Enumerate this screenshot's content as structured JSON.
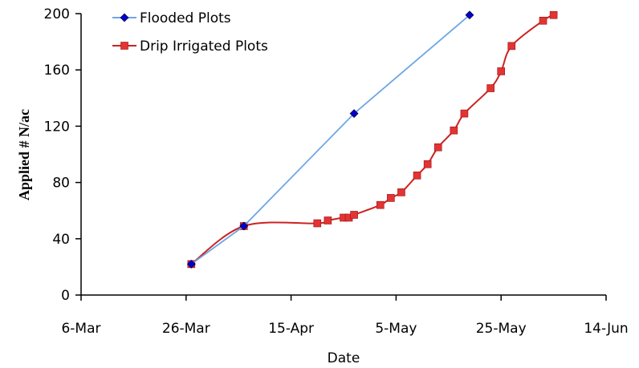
{
  "chart_data": {
    "type": "line",
    "xlabel": "Date",
    "ylabel": "Applied # N/ac",
    "ylim": [
      0,
      200
    ],
    "y_ticks": [
      0,
      40,
      80,
      120,
      160,
      200
    ],
    "x_ticks": [
      {
        "date": "2007-03-06",
        "label": "6-Mar"
      },
      {
        "date": "2007-03-26",
        "label": "26-Mar"
      },
      {
        "date": "2007-04-15",
        "label": "15-Apr"
      },
      {
        "date": "2007-05-05",
        "label": "5-May"
      },
      {
        "date": "2007-05-25",
        "label": "25-May"
      },
      {
        "date": "2007-06-14",
        "label": "14-Jun"
      }
    ],
    "xlim": [
      "2007-03-06",
      "2007-06-14"
    ],
    "legend_position": "top-left",
    "grid": false,
    "series": [
      {
        "name": "Flooded Plots",
        "color": "#6CA6E8",
        "marker_color": "#0000CC",
        "marker": "diamond",
        "smooth": false,
        "points": [
          {
            "x": "2007-03-27",
            "y": 22
          },
          {
            "x": "2007-04-06",
            "y": 49
          },
          {
            "x": "2007-04-27",
            "y": 129
          },
          {
            "x": "2007-05-19",
            "y": 199
          }
        ]
      },
      {
        "name": "Drip Irrigated Plots",
        "color": "#CC2222",
        "marker_color": "#E33333",
        "marker": "square",
        "smooth": true,
        "points": [
          {
            "x": "2007-03-27",
            "y": 22
          },
          {
            "x": "2007-04-06",
            "y": 49
          },
          {
            "x": "2007-04-20",
            "y": 51
          },
          {
            "x": "2007-04-22",
            "y": 53
          },
          {
            "x": "2007-04-25",
            "y": 55
          },
          {
            "x": "2007-04-26",
            "y": 55
          },
          {
            "x": "2007-04-27",
            "y": 57
          },
          {
            "x": "2007-05-02",
            "y": 64
          },
          {
            "x": "2007-05-04",
            "y": 69
          },
          {
            "x": "2007-05-06",
            "y": 73
          },
          {
            "x": "2007-05-09",
            "y": 85
          },
          {
            "x": "2007-05-11",
            "y": 93
          },
          {
            "x": "2007-05-13",
            "y": 105
          },
          {
            "x": "2007-05-16",
            "y": 117
          },
          {
            "x": "2007-05-18",
            "y": 129
          },
          {
            "x": "2007-05-23",
            "y": 147
          },
          {
            "x": "2007-05-25",
            "y": 159
          },
          {
            "x": "2007-05-27",
            "y": 177
          },
          {
            "x": "2007-06-02",
            "y": 195
          },
          {
            "x": "2007-06-04",
            "y": 199
          }
        ]
      }
    ]
  }
}
